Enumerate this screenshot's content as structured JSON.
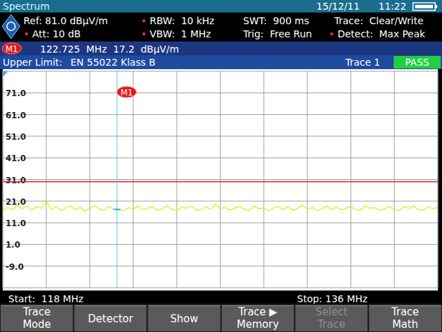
{
  "screen": {
    "header": {
      "app": "Spectrum",
      "date": "15/12/11",
      "time": "11:22"
    },
    "settings": [
      [
        "Ref: 81.0 dBµV/m",
        "• RBW:  10 kHz",
        "SWT:  900 ms",
        "Trace:  Clear/Write"
      ],
      [
        "• Att: 10 dB",
        "• VBW:  1 MHz",
        "Trig:  Free Run",
        "• Detect:  Max Peak"
      ]
    ],
    "marker_readout": "122.725  MHz  17.2  dBµV/m",
    "limit_bar": {
      "label": "Upper Limit:",
      "standard": "EN 55022 Klass B",
      "result": "PASS"
    },
    "footer": {
      "start": "Start:  118 MHz",
      "stop": "Stop: 136 MHz"
    },
    "softkeys": [
      {
        "lines": [
          "Trace",
          "Mode"
        ],
        "enabled": true
      },
      {
        "lines": [
          "Detector"
        ],
        "enabled": true
      },
      {
        "lines": [
          "Show"
        ],
        "enabled": true
      },
      {
        "lines": [
          "Trace ▶",
          "Memory"
        ],
        "enabled": true
      },
      {
        "lines": [
          "Select",
          "Trace"
        ],
        "enabled": false
      },
      {
        "lines": [
          "Trace",
          "Math"
        ],
        "enabled": true
      }
    ]
  },
  "chart_data": {
    "type": "line",
    "x": [
      118,
      118.2,
      118.4,
      118.6,
      118.8,
      119,
      119.2,
      119.4,
      119.6,
      119.8,
      120,
      120.2,
      120.4,
      120.6,
      120.8,
      121,
      121.2,
      121.4,
      121.6,
      121.8,
      122,
      122.2,
      122.4,
      122.6,
      122.8,
      123,
      123.2,
      123.4,
      123.6,
      123.8,
      124,
      124.2,
      124.4,
      124.6,
      124.8,
      125,
      125.2,
      125.4,
      125.6,
      125.8,
      126,
      126.2,
      126.4,
      126.6,
      126.8,
      127,
      127.2,
      127.4,
      127.6,
      127.8,
      128,
      128.2,
      128.4,
      128.6,
      128.8,
      129,
      129.2,
      129.4,
      129.6,
      129.8,
      130,
      130.2,
      130.4,
      130.6,
      130.8,
      131,
      131.2,
      131.4,
      131.6,
      131.8,
      132,
      132.2,
      132.4,
      132.6,
      132.8,
      133,
      133.2,
      133.4,
      133.6,
      133.8,
      134,
      134.2,
      134.4,
      134.6,
      134.8,
      135,
      135.2,
      135.4,
      135.6,
      135.8,
      136
    ],
    "series": [
      {
        "name": "Trace 1",
        "color": "#e6e600",
        "values": [
          16.8,
          18.1,
          17.2,
          19.0,
          17.5,
          18.6,
          16.9,
          18.3,
          17.7,
          20.8,
          17.1,
          18.4,
          16.6,
          17.9,
          18.8,
          17.0,
          18.2,
          16.4,
          17.6,
          18.9,
          17.3,
          16.8,
          18.5,
          17.2,
          17.2,
          16.5,
          18.0,
          17.4,
          18.7,
          16.9,
          17.8,
          18.3,
          16.7,
          17.5,
          18.9,
          17.1,
          16.6,
          18.2,
          17.7,
          18.6,
          17.0,
          16.8,
          18.4,
          17.3,
          19.6,
          17.6,
          18.1,
          16.9,
          17.8,
          18.5,
          17.2,
          16.7,
          18.8,
          17.4,
          18.0,
          16.5,
          17.9,
          18.6,
          17.1,
          18.3,
          16.8,
          17.7,
          19.2,
          17.3,
          18.1,
          16.6,
          17.5,
          18.7,
          17.0,
          18.2,
          16.9,
          17.8,
          18.4,
          17.2,
          16.7,
          18.9,
          17.6,
          18.0,
          16.8,
          17.4,
          18.5,
          17.1,
          16.6,
          18.3,
          17.7,
          18.8,
          17.0,
          16.9,
          18.2,
          17.5,
          18.0
        ]
      }
    ],
    "xlim": [
      118,
      136
    ],
    "ylim": [
      -19,
      81
    ],
    "xticks": [
      118,
      119.8,
      121.6,
      123.4,
      125.2,
      127,
      128.8,
      130.6,
      132.4,
      134.2,
      136
    ],
    "yticks": [
      {
        "value": 71,
        "label": "71.0"
      },
      {
        "value": 61,
        "label": "61.0"
      },
      {
        "value": 51,
        "label": "51.0"
      },
      {
        "value": 41,
        "label": "41.0"
      },
      {
        "value": 31,
        "label": "31.0"
      },
      {
        "value": 21,
        "label": "21.0"
      },
      {
        "value": 11,
        "label": "11.0"
      },
      {
        "value": 1,
        "label": "1.0"
      },
      {
        "value": -9,
        "label": "-9.0"
      }
    ],
    "grid": true,
    "tick_labels": "y",
    "upper_limit": 30,
    "marker": {
      "label": "M1",
      "x": 122.725,
      "y": 17.2
    }
  }
}
